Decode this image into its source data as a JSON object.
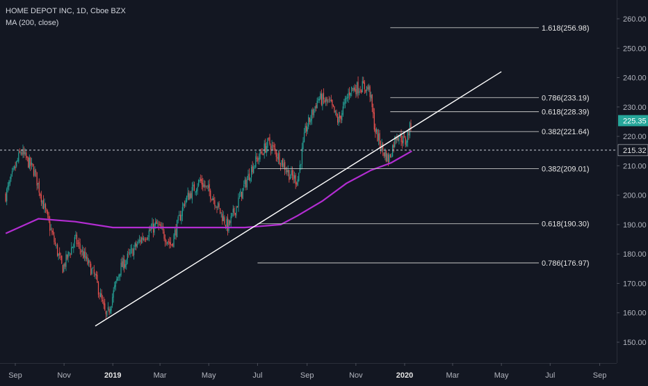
{
  "legend": {
    "symbol_line": "HOME DEPOT INC, 1D, Cboe BZX",
    "indicator_line": "MA (200, close)"
  },
  "colors": {
    "background": "#131722",
    "candle_up": "#26a69a",
    "candle_down": "#ef5350",
    "moving_average": "#b32dd2",
    "fib_lines": "#c8c8c8",
    "trendline": "#ffffff",
    "axis_text": "#b2b5be",
    "last_price_badge": "#26a69a"
  },
  "chart_data": {
    "type": "candlestick",
    "x_axis_labels": [
      "Sep",
      "Nov",
      "2019",
      "Mar",
      "May",
      "Jul",
      "Sep",
      "Nov",
      "2020",
      "Mar",
      "May",
      "Jul",
      "Sep"
    ],
    "y_axis_ticks": [
      "150.00",
      "160.00",
      "170.00",
      "180.00",
      "190.00",
      "200.00",
      "210.00",
      "220.00",
      "230.00",
      "240.00",
      "250.00",
      "260.00"
    ],
    "ylim": [
      143,
      263
    ],
    "price_path": [
      [
        "2018-08-20",
        200
      ],
      [
        "2018-09-08",
        215
      ],
      [
        "2018-09-25",
        208
      ],
      [
        "2018-10-10",
        193
      ],
      [
        "2018-10-30",
        175
      ],
      [
        "2018-11-15",
        185
      ],
      [
        "2018-12-10",
        172
      ],
      [
        "2018-12-24",
        158
      ],
      [
        "2019-01-10",
        175
      ],
      [
        "2019-02-05",
        185
      ],
      [
        "2019-02-25",
        190
      ],
      [
        "2019-03-15",
        183
      ],
      [
        "2019-04-01",
        198
      ],
      [
        "2019-04-20",
        205
      ],
      [
        "2019-05-05",
        200
      ],
      [
        "2019-05-25",
        189
      ],
      [
        "2019-06-10",
        200
      ],
      [
        "2019-06-25",
        210
      ],
      [
        "2019-07-15",
        218
      ],
      [
        "2019-07-30",
        212
      ],
      [
        "2019-08-10",
        207
      ],
      [
        "2019-08-20",
        205
      ],
      [
        "2019-08-30",
        222
      ],
      [
        "2019-09-15",
        233
      ],
      [
        "2019-09-30",
        231
      ],
      [
        "2019-10-10",
        225
      ],
      [
        "2019-10-25",
        236
      ],
      [
        "2019-11-10",
        237
      ],
      [
        "2019-11-18",
        236
      ],
      [
        "2019-11-25",
        222
      ],
      [
        "2019-12-05",
        215
      ],
      [
        "2019-12-12",
        212
      ],
      [
        "2019-12-22",
        221
      ],
      [
        "2020-01-02",
        218
      ],
      [
        "2020-01-10",
        225
      ]
    ],
    "moving_average_200": [
      [
        "2018-08-20",
        187
      ],
      [
        "2018-09-30",
        192
      ],
      [
        "2018-11-15",
        191
      ],
      [
        "2019-01-01",
        189
      ],
      [
        "2019-03-01",
        189
      ],
      [
        "2019-05-01",
        189
      ],
      [
        "2019-06-15",
        189
      ],
      [
        "2019-07-30",
        190
      ],
      [
        "2019-08-20",
        193
      ],
      [
        "2019-09-20",
        198
      ],
      [
        "2019-10-20",
        204
      ],
      [
        "2019-11-20",
        208.5
      ],
      [
        "2019-12-15",
        211
      ],
      [
        "2020-01-10",
        215
      ]
    ],
    "fib_levels": [
      {
        "label": "1.618(256.98)",
        "value": 256.98,
        "from": "2019-12-14"
      },
      {
        "label": "0.786(233.19)",
        "value": 233.19,
        "from": "2019-12-14"
      },
      {
        "label": "0.618(228.39)",
        "value": 228.39,
        "from": "2019-12-14"
      },
      {
        "label": "0.382(221.64)",
        "value": 221.64,
        "from": "2019-12-14"
      },
      {
        "label": "0.382(209.01)",
        "value": 209.01,
        "from": "2019-07-01"
      },
      {
        "label": "0.618(190.30)",
        "value": 190.3,
        "from": "2019-07-01"
      },
      {
        "label": "0.786(176.97)",
        "value": 176.97,
        "from": "2019-07-01"
      }
    ],
    "trendline": {
      "from": [
        "2018-12-10",
        155.5
      ],
      "to": [
        "2020-05-01",
        242
      ]
    },
    "reference_line": {
      "value": 215.32,
      "label": "215.32"
    },
    "last_price": {
      "value": 225.35,
      "label": "225.35"
    }
  }
}
